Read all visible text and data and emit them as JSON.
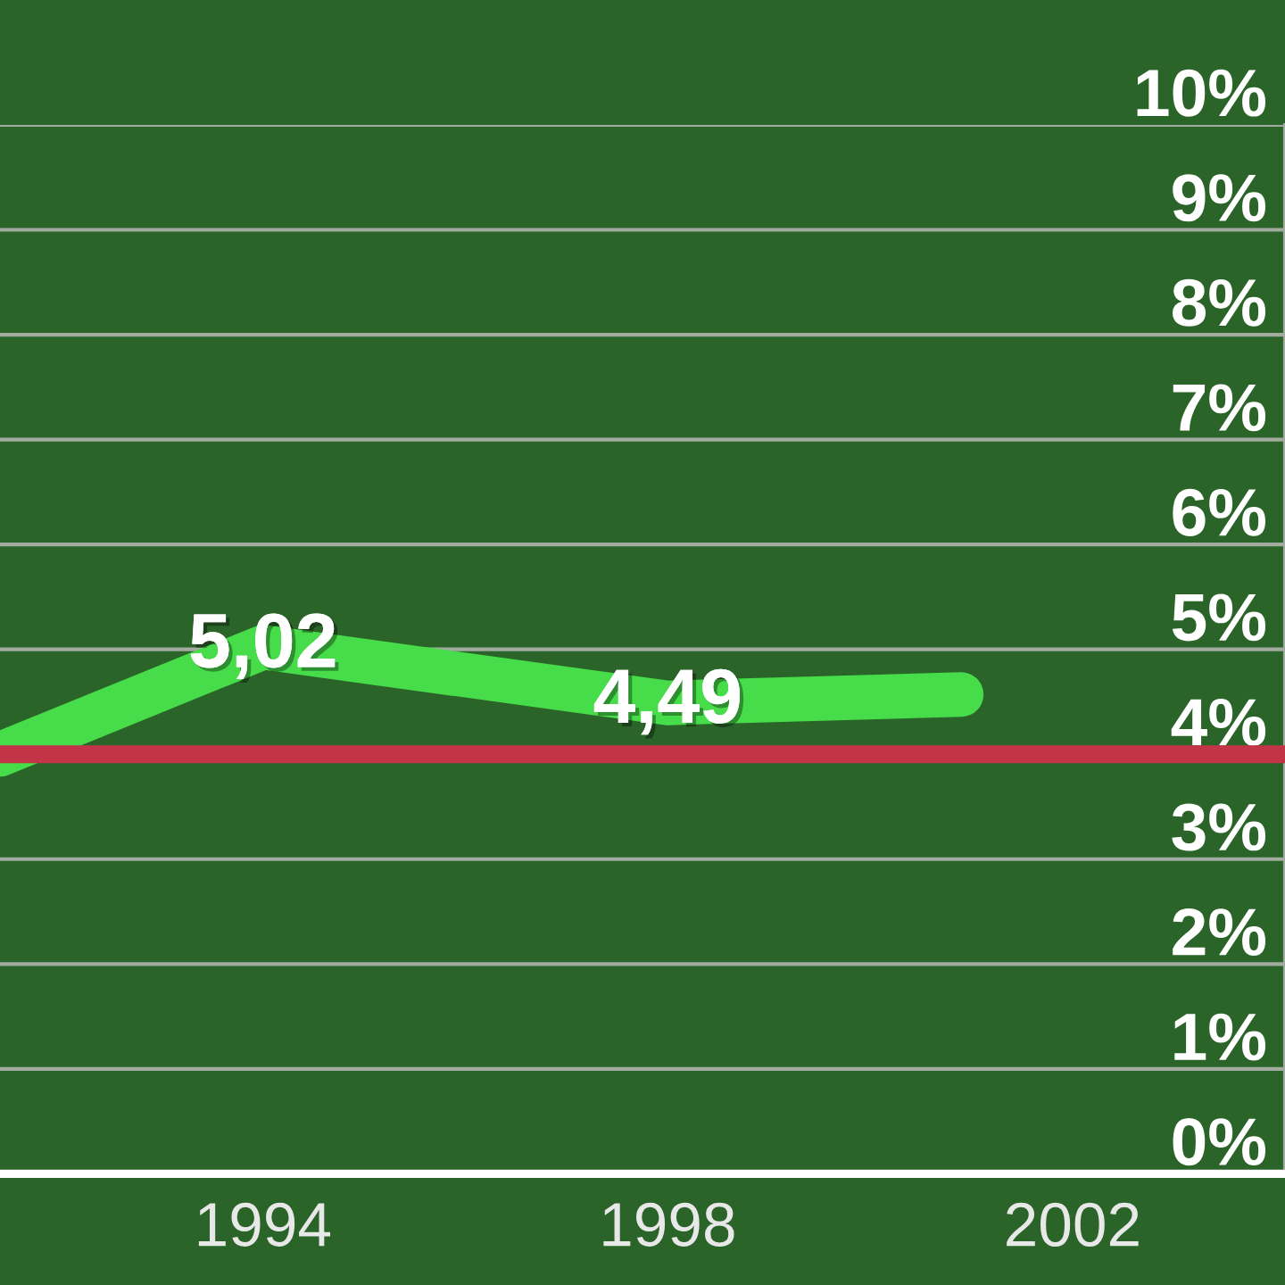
{
  "chart_data": {
    "type": "line",
    "x": [
      1991.4,
      1994,
      1998,
      2000.9
    ],
    "series": [
      {
        "color": "#46dc4a",
        "values": [
          4.0,
          5.02,
          4.49,
          4.57
        ],
        "value_labels": [
          null,
          "5,02",
          "4,49",
          null
        ]
      }
    ],
    "xlim": [
      1991.4,
      2004.1
    ],
    "xticks": [
      1994,
      1998,
      2002
    ],
    "ylim": [
      0,
      10
    ],
    "yticks": [
      {
        "value": 0,
        "label": "0%"
      },
      {
        "value": 1,
        "label": "1%"
      },
      {
        "value": 2,
        "label": "2%"
      },
      {
        "value": 3,
        "label": "3%"
      },
      {
        "value": 4,
        "label": "4%"
      },
      {
        "value": 5,
        "label": "5%"
      },
      {
        "value": 6,
        "label": "6%"
      },
      {
        "value": 7,
        "label": "7%"
      },
      {
        "value": 8,
        "label": "8%"
      },
      {
        "value": 9,
        "label": "9%"
      },
      {
        "value": 10,
        "label": "10%"
      }
    ],
    "grid": "y",
    "ref_lines": [
      {
        "axis": "y",
        "value": 4,
        "color": "#c33448"
      }
    ]
  }
}
